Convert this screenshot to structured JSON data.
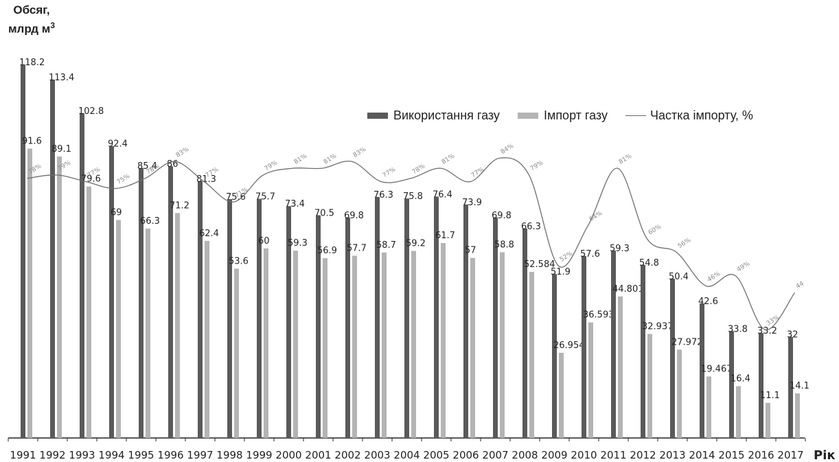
{
  "colors": {
    "usage": "#5a5a5a",
    "import": "#b4b4b4",
    "share": "#6e6e6e",
    "axis": "#222222",
    "text": "#222222"
  },
  "chart_data": {
    "type": "bar",
    "ylabel_line1": "Обсяг,",
    "ylabel_line2": "млрд м",
    "ylabel_sup": "3",
    "xlabel": "Рік",
    "categories": [
      "1991",
      "1992",
      "1993",
      "1994",
      "1995",
      "1996",
      "1997",
      "1998",
      "1999",
      "2000",
      "2001",
      "2002",
      "2003",
      "2004",
      "2005",
      "2006",
      "2007",
      "2008",
      "2009",
      "2010",
      "2011",
      "2012",
      "2013",
      "2014",
      "2015",
      "2016",
      "2017"
    ],
    "series": [
      {
        "name": "Використання газу",
        "kind": "bar",
        "values": [
          118.2,
          113.4,
          102.8,
          92.4,
          85.4,
          86,
          81.3,
          75.6,
          75.7,
          73.4,
          70.5,
          69.8,
          76.3,
          75.8,
          76.4,
          73.9,
          69.8,
          66.3,
          51.9,
          57.6,
          59.3,
          54.8,
          50.4,
          42.6,
          33.8,
          33.2,
          32
        ],
        "labels": [
          "118.2",
          "113.4",
          "102.8",
          "92.4",
          "85.4",
          "86",
          "81.3",
          "75.6",
          "75.7",
          "73.4",
          "70.5",
          "69.8",
          "76.3",
          "75.8",
          "76.4",
          "73.9",
          "69.8",
          "66.3",
          "51.9",
          "57.6",
          "59.3",
          "54.8",
          "50.4",
          "42.6",
          "33.8",
          "33.2",
          "32"
        ]
      },
      {
        "name": "Імпорт газу",
        "kind": "bar",
        "values": [
          91.6,
          89.1,
          79.6,
          69,
          66.3,
          71.2,
          62.4,
          53.6,
          60,
          59.3,
          56.9,
          57.7,
          58.7,
          59.2,
          61.7,
          57,
          58.8,
          52.584,
          26.954,
          36.593,
          44.801,
          32.937,
          27.972,
          19.467,
          16.4,
          11.1,
          14.1
        ],
        "labels": [
          "91.6",
          "89.1",
          "79.6",
          "69",
          "66.3",
          "71.2",
          "62.4",
          "53.6",
          "60",
          "59.3",
          "56.9",
          "57.7",
          "58.7",
          "59.2",
          "61.7",
          "57",
          "58.8",
          "52.584",
          "26.954",
          "36.593",
          "44.801",
          "32.937",
          "27.972",
          "19.467",
          "16.4",
          "11.1",
          "14.1"
        ]
      },
      {
        "name": "Частка імпорту, %",
        "kind": "line",
        "values": [
          78,
          79,
          77,
          75,
          78,
          83,
          77,
          71,
          79,
          81,
          81,
          83,
          77,
          78,
          81,
          77,
          84,
          79,
          52,
          64,
          81,
          60,
          56,
          46,
          49,
          33,
          44
        ],
        "labels": [
          "78%",
          "79%",
          "77%",
          "75%",
          "78%",
          "83%",
          "77%",
          "71%",
          "79%",
          "81%",
          "81%",
          "83%",
          "77%",
          "78%",
          "81%",
          "77%",
          "84%",
          "79%",
          "52%",
          "64%",
          "81%",
          "60%",
          "56%",
          "46%",
          "49%",
          "33%",
          "44"
        ]
      }
    ],
    "ylim": [
      0,
      120
    ],
    "share_scale": "secondary percent scale, not printed",
    "grid": false,
    "legend_position": "top-right"
  }
}
